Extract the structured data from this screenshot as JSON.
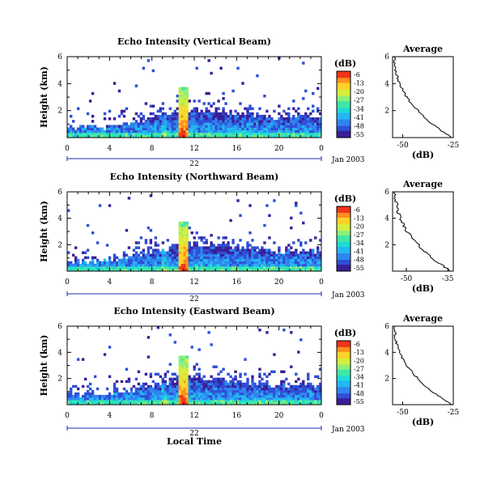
{
  "chart_data": [
    {
      "type": "heatmap",
      "title": "Echo Intensity (Vertical Beam)",
      "ylabel": "Height (km)",
      "x_ticks": [
        "0",
        "4",
        "8",
        "12",
        "16",
        "20",
        "0"
      ],
      "y_ticks": [
        "2",
        "4",
        "6"
      ],
      "date_day": "22",
      "date_label": "Jan 2003",
      "xlim": [
        0,
        24
      ],
      "ylim": [
        0,
        6
      ],
      "colorbar": {
        "unit": "(dB)",
        "ticks": [
          "-6",
          "-13",
          "-20",
          "-27",
          "-34",
          "-41",
          "-48",
          "-55"
        ]
      },
      "average": {
        "title": "Average",
        "xlabel": "(dB)",
        "x_ticks": [
          "-50",
          "-25"
        ],
        "y_ticks": [
          "2",
          "4",
          "6"
        ],
        "xlim": [
          -55,
          -25
        ]
      }
    },
    {
      "type": "heatmap",
      "title": "Echo Intensity (Northward Beam)",
      "ylabel": "Height (km)",
      "x_ticks": [
        "0",
        "4",
        "8",
        "12",
        "16",
        "20",
        "0"
      ],
      "y_ticks": [
        "2",
        "4",
        "6"
      ],
      "date_day": "22",
      "date_label": "Jan 2003",
      "xlim": [
        0,
        24
      ],
      "ylim": [
        0,
        6
      ],
      "colorbar": {
        "unit": "(dB)",
        "ticks": [
          "-6",
          "-13",
          "-20",
          "-27",
          "-34",
          "-41",
          "-48",
          "-55"
        ]
      },
      "average": {
        "title": "Average",
        "xlabel": "(dB)",
        "x_ticks": [
          "-50",
          "-35"
        ],
        "y_ticks": [
          "2",
          "4",
          "6"
        ],
        "xlim": [
          -55,
          -33
        ]
      }
    },
    {
      "type": "heatmap",
      "title": "Echo Intensity (Eastward Beam)",
      "ylabel": "Height (km)",
      "x_ticks": [
        "0",
        "4",
        "8",
        "12",
        "16",
        "20",
        "0"
      ],
      "y_ticks": [
        "2",
        "4",
        "6"
      ],
      "date_day": "22",
      "date_label": "Jan 2003",
      "xlabel": "Local Time",
      "xlim": [
        0,
        24
      ],
      "ylim": [
        0,
        6
      ],
      "colorbar": {
        "unit": "(dB)",
        "ticks": [
          "-6",
          "-13",
          "-20",
          "-27",
          "-34",
          "-41",
          "-48",
          "-55"
        ]
      },
      "average": {
        "title": "Average",
        "xlabel": "(dB)",
        "x_ticks": [
          "-50",
          "-25"
        ],
        "y_ticks": [
          "2",
          "4",
          "6"
        ],
        "xlim": [
          -55,
          -25
        ]
      }
    }
  ]
}
